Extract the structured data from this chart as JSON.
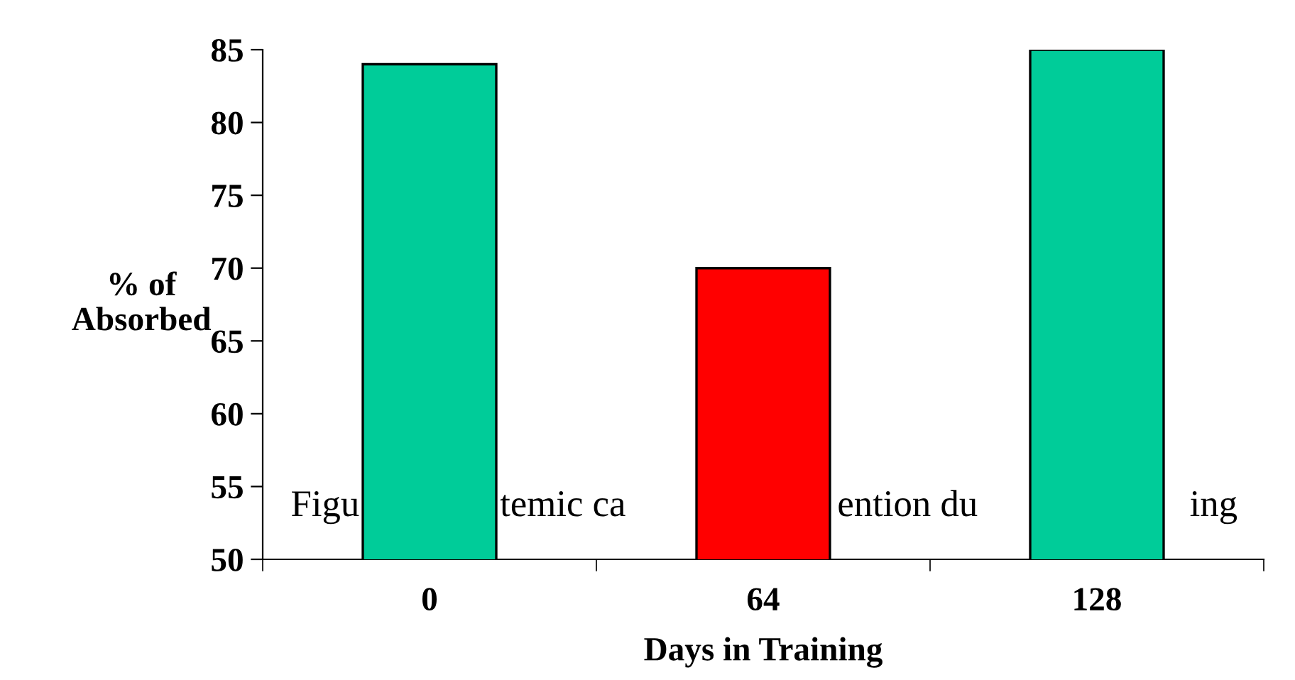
{
  "chart_data": {
    "type": "bar",
    "categories": [
      "0",
      "64",
      "128"
    ],
    "values": [
      84,
      70,
      85
    ],
    "colors": [
      "#00cc99",
      "#ff0000",
      "#00cc99"
    ],
    "ylim": [
      50,
      85
    ],
    "yticks": [
      50,
      55,
      60,
      65,
      70,
      75,
      80,
      85
    ],
    "xlabel": "Days in Training",
    "ylabel": "% of\nAbsorbed",
    "annotations": [
      "Figu",
      "temic ca",
      "ention du",
      "ing"
    ],
    "grid": false,
    "legend": false
  }
}
